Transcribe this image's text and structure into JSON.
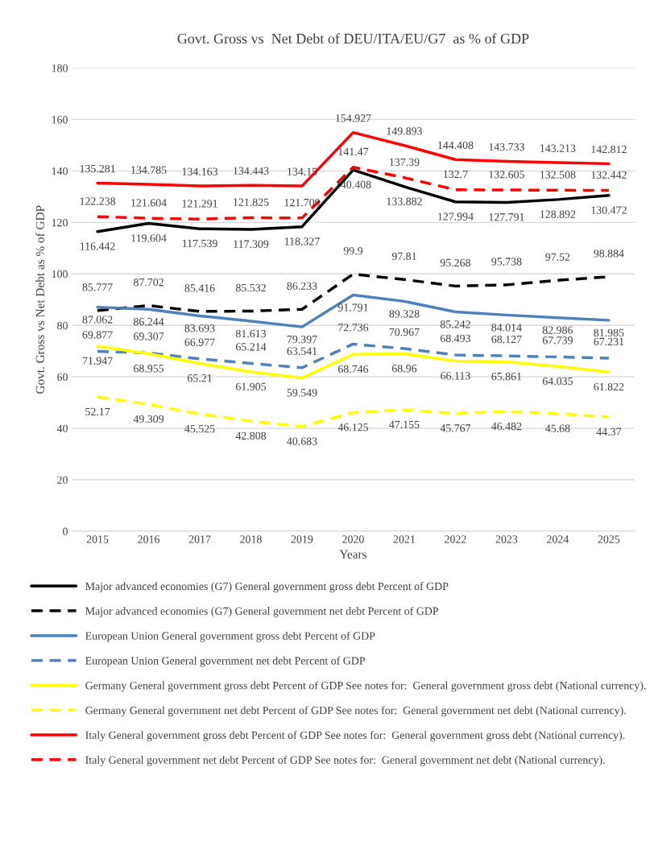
{
  "chart_data": {
    "type": "line",
    "title": "Govt. Gross vs  Net Debt of DEU/ITA/EU/G7  as % of GDP",
    "xlabel": "Years",
    "ylabel": "Govt. Gross vs Net Debt as % of GDP",
    "categories": [
      "2015",
      "2016",
      "2017",
      "2018",
      "2019",
      "2020",
      "2021",
      "2022",
      "2023",
      "2024",
      "2025"
    ],
    "ylim": [
      0,
      180
    ],
    "yticks": [
      0,
      20,
      40,
      60,
      80,
      100,
      120,
      140,
      160,
      180
    ],
    "grid": "y",
    "legend": "bottom",
    "data_labels": true,
    "marker": "none",
    "series": [
      {
        "name": "Major advanced economies (G7) General government gross debt Percent of GDP",
        "color": "#000000",
        "line_style": "solid",
        "values": [
          116.442,
          119.604,
          117.539,
          117.309,
          118.327,
          140.408,
          133.882,
          127.994,
          127.791,
          128.892,
          130.472
        ]
      },
      {
        "name": "Major advanced economies (G7) General government net debt Percent of GDP",
        "color": "#000000",
        "line_style": "dashed",
        "values": [
          85.777,
          87.702,
          85.416,
          85.532,
          86.233,
          99.9,
          97.81,
          95.268,
          95.738,
          97.52,
          98.884
        ]
      },
      {
        "name": "European Union General government gross debt Percent of GDP",
        "color": "#4f81bd",
        "line_style": "solid",
        "values": [
          87.062,
          86.244,
          83.693,
          81.613,
          79.397,
          91.791,
          89.328,
          85.242,
          84.014,
          82.986,
          81.985
        ]
      },
      {
        "name": "European Union General government net debt Percent of GDP",
        "color": "#4f81bd",
        "line_style": "dashed",
        "values": [
          69.877,
          69.307,
          66.977,
          65.214,
          63.541,
          72.736,
          70.967,
          68.493,
          68.127,
          67.739,
          67.231
        ]
      },
      {
        "name": "Germany General government gross debt Percent of GDP See notes for:  General government gross debt (National currency).",
        "color": "#ffff00",
        "line_style": "solid",
        "values": [
          71.947,
          68.955,
          65.21,
          61.905,
          59.549,
          68.746,
          68.96,
          66.113,
          65.861,
          64.035,
          61.822
        ]
      },
      {
        "name": "Germany General government net debt Percent of GDP See notes for:  General government net debt (National currency).",
        "color": "#ffff00",
        "line_style": "dashed",
        "values": [
          52.17,
          49.309,
          45.525,
          42.808,
          40.683,
          46.125,
          47.155,
          45.767,
          46.482,
          45.68,
          44.37
        ]
      },
      {
        "name": "Italy General government gross debt Percent of GDP See notes for:  General government gross debt (National currency).",
        "color": "#ff0000",
        "line_style": "solid",
        "values": [
          135.281,
          134.785,
          134.163,
          134.443,
          134.15,
          154.927,
          149.893,
          144.408,
          143.733,
          143.213,
          142.812
        ]
      },
      {
        "name": "Italy General government net debt Percent of GDP See notes for:  General government net debt (National currency).",
        "color": "#ff0000",
        "line_style": "dashed",
        "values": [
          122.238,
          121.604,
          121.291,
          121.825,
          121.709,
          141.47,
          137.39,
          132.7,
          132.605,
          132.508,
          132.442
        ]
      }
    ]
  }
}
